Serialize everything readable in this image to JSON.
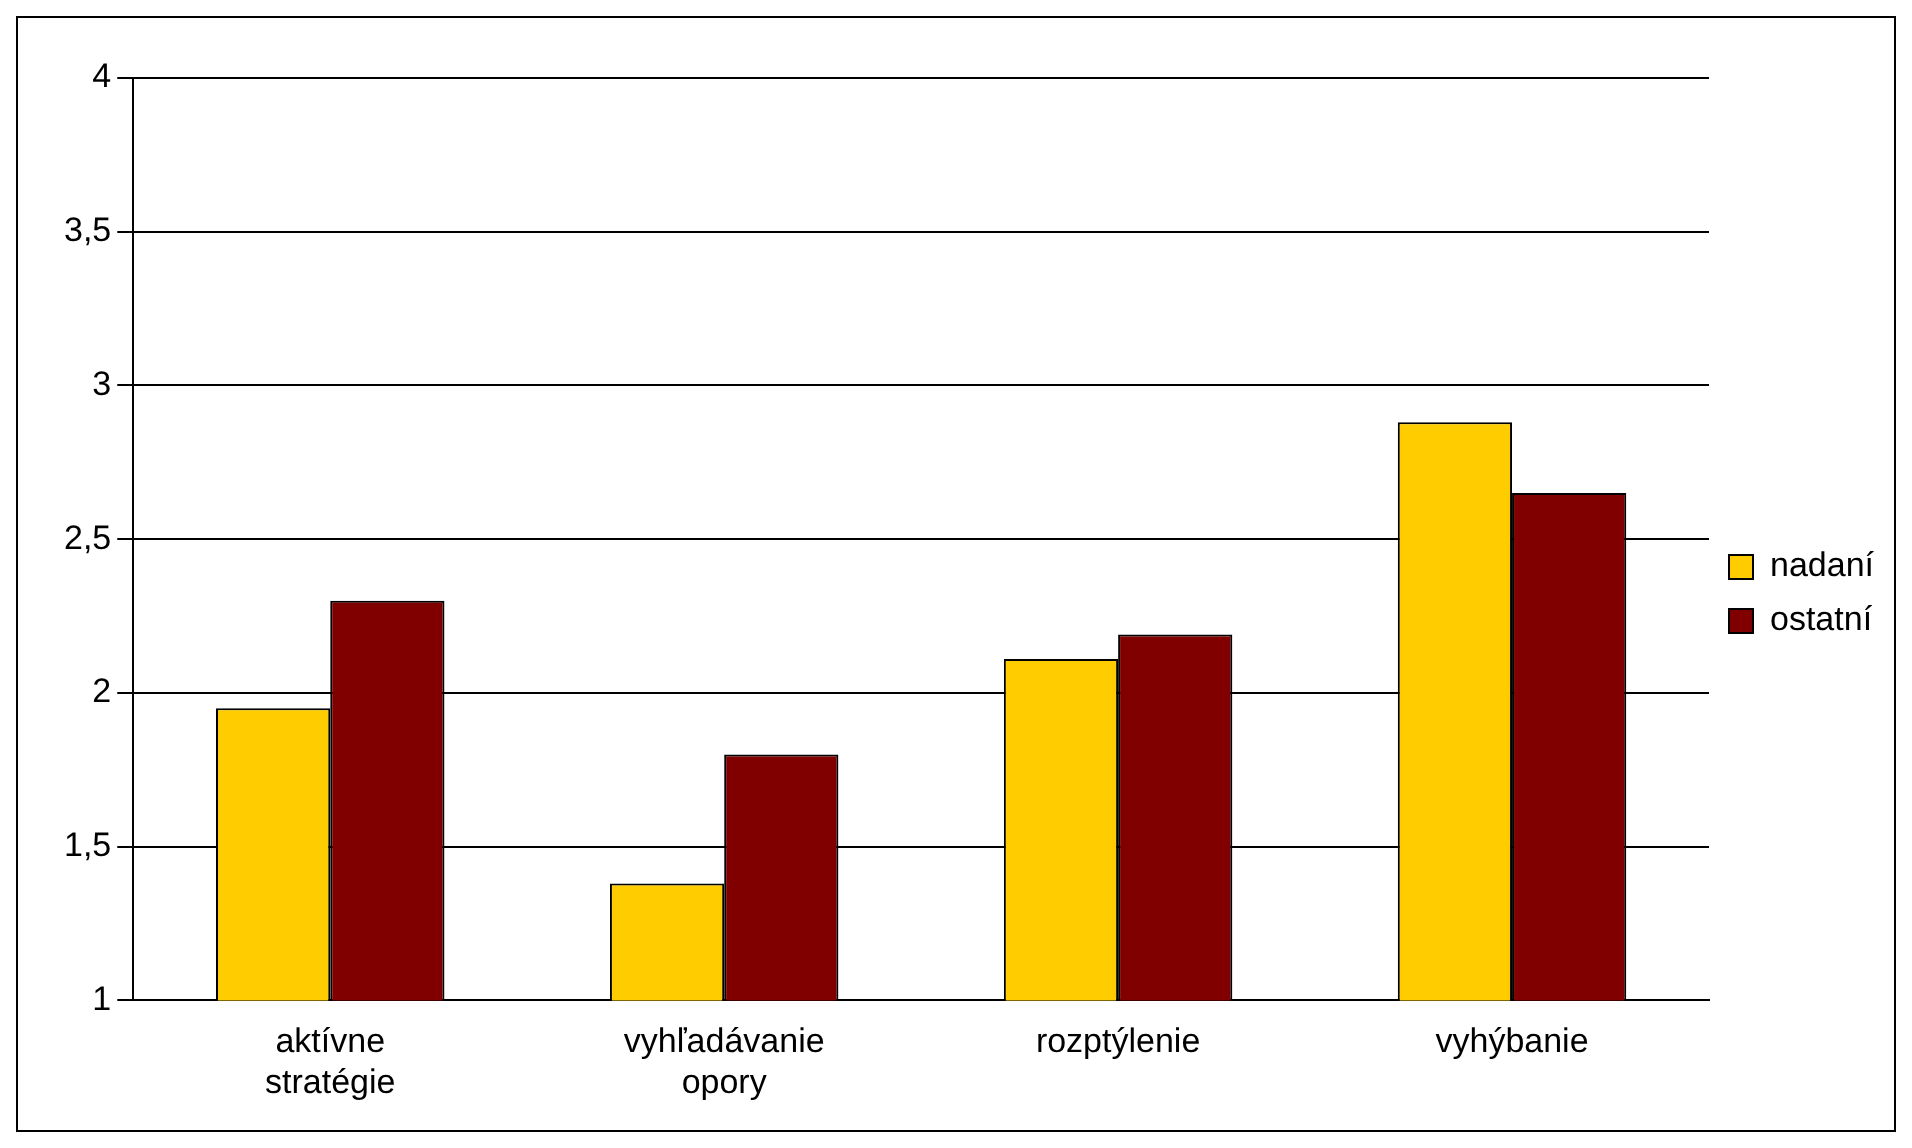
{
  "chart_data": {
    "type": "bar",
    "categories": [
      [
        "aktívne",
        "stratégie"
      ],
      [
        "vyhľadávanie",
        "opory"
      ],
      "rozptýlenie",
      "vyhýbanie"
    ],
    "series": [
      {
        "name": "nadaní",
        "color": "#ffcc00",
        "values": [
          1.95,
          1.38,
          2.11,
          2.88
        ]
      },
      {
        "name": "ostatní",
        "color": "#800000",
        "values": [
          2.3,
          1.8,
          2.19,
          2.65
        ]
      }
    ],
    "ylim": [
      1,
      4
    ],
    "yticks": [
      1,
      {
        "value": 1.5,
        "label": "1,5"
      },
      2,
      {
        "value": 2.5,
        "label": "2,5"
      },
      3,
      {
        "value": 3.5,
        "label": "3,5"
      },
      4
    ],
    "grid": "y",
    "legend": "right"
  }
}
